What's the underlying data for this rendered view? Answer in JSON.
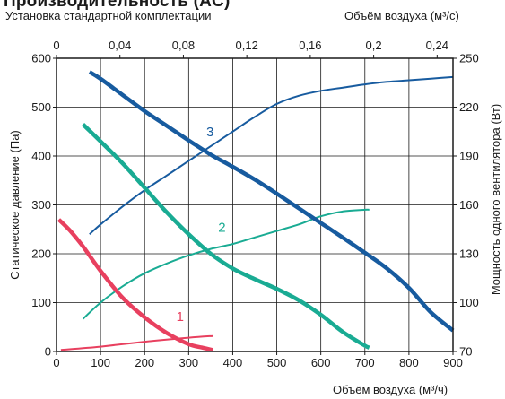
{
  "header": {
    "title": "Производительность (AC)",
    "subtitle": "Установка стандартной комплектации",
    "top_axis_label": "Объём воздуха (м³/с)",
    "bottom_axis_label": "Объём воздуха (м³/ч)",
    "left_axis_label": "Статическое давление (Па)",
    "right_axis_label": "Мощность одного вентилятора (Вт)"
  },
  "chart_data": {
    "type": "line",
    "title": "Производительность (AC)",
    "subtitle": "Установка стандартной комплектации",
    "xlabel": "Объём воздуха (м³/ч)",
    "x2label": "Объём воздуха (м³/с)",
    "ylabel": "Статическое давление (Па)",
    "y2label": "Мощность одного вентилятора (Вт)",
    "xlim": [
      0,
      900
    ],
    "ylim": [
      0,
      600
    ],
    "x2lim": [
      0,
      0.25
    ],
    "y2lim": [
      70,
      250
    ],
    "xticks": [
      "0",
      "100",
      "200",
      "300",
      "400",
      "500",
      "600",
      "700",
      "800",
      "900"
    ],
    "yticks": [
      "0",
      "100",
      "200",
      "300",
      "400",
      "500",
      "600"
    ],
    "x2ticks": [
      "0",
      "0,04",
      "0,08",
      "0,12",
      "0,16",
      "0,2",
      "0,24"
    ],
    "y2ticks": [
      "70",
      "100",
      "130",
      "160",
      "190",
      "220",
      "250"
    ],
    "grid": true,
    "series": [
      {
        "name": "1",
        "kind": "pressure",
        "color": "#e8405f",
        "width": 4.5,
        "x": [
          5,
          30,
          60,
          100,
          150,
          200,
          250,
          300,
          330,
          355
        ],
        "y": [
          270,
          248,
          215,
          165,
          110,
          70,
          38,
          15,
          8,
          3
        ]
      },
      {
        "name": "1",
        "kind": "power",
        "color": "#e8405f",
        "width": 2,
        "x": [
          10,
          100,
          200,
          300,
          355
        ],
        "y": [
          71,
          73,
          76,
          78.5,
          79.5
        ]
      },
      {
        "name": "2",
        "kind": "pressure",
        "color": "#19ab93",
        "width": 4.5,
        "x": [
          60,
          100,
          150,
          200,
          250,
          300,
          350,
          400,
          450,
          500,
          550,
          600,
          650,
          700,
          710
        ],
        "y": [
          465,
          430,
          385,
          335,
          285,
          240,
          200,
          170,
          148,
          128,
          105,
          75,
          40,
          12,
          8
        ]
      },
      {
        "name": "2",
        "kind": "power",
        "color": "#19ab93",
        "width": 2,
        "x": [
          60,
          100,
          150,
          200,
          250,
          300,
          350,
          400,
          450,
          500,
          550,
          600,
          650,
          700,
          710
        ],
        "y": [
          90,
          100,
          110,
          118,
          124,
          129,
          133,
          136,
          140,
          144,
          148,
          153,
          156,
          157,
          157
        ]
      },
      {
        "name": "3",
        "kind": "pressure",
        "color": "#175b9f",
        "width": 4.5,
        "x": [
          75,
          100,
          150,
          200,
          250,
          300,
          350,
          400,
          450,
          500,
          550,
          600,
          650,
          700,
          750,
          800,
          850,
          900
        ],
        "y": [
          572,
          558,
          525,
          492,
          462,
          432,
          403,
          378,
          352,
          323,
          293,
          263,
          233,
          202,
          170,
          130,
          80,
          43
        ]
      },
      {
        "name": "3",
        "kind": "power",
        "color": "#175b9f",
        "width": 2,
        "x": [
          75,
          100,
          150,
          200,
          250,
          300,
          350,
          400,
          450,
          500,
          550,
          600,
          650,
          700,
          750,
          800,
          850,
          900
        ],
        "y": [
          142,
          148,
          159,
          169,
          178,
          187,
          196,
          205,
          214,
          222,
          227,
          230,
          232,
          234,
          235.5,
          236.5,
          237.5,
          238.5
        ]
      }
    ],
    "annotations": [
      {
        "text": "1",
        "color": "#e8405f",
        "x": 272,
        "y": 62
      },
      {
        "text": "2",
        "color": "#19ab93",
        "x": 367,
        "y": 245
      },
      {
        "text": "3",
        "color": "#175b9f",
        "x": 340,
        "y": 440
      }
    ]
  }
}
